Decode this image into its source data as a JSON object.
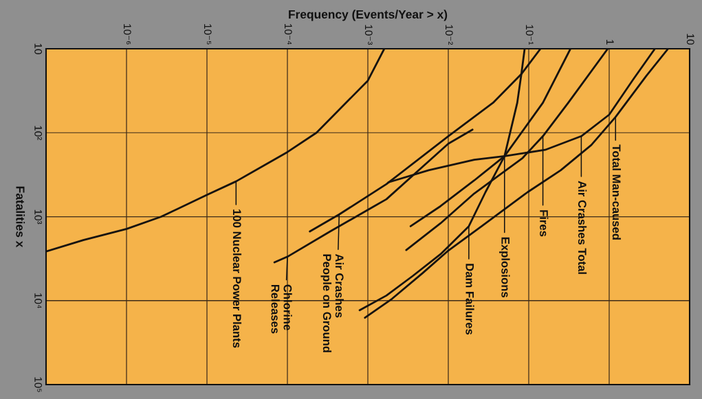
{
  "chart_data": {
    "type": "line",
    "xlabel": "Frequency (Events/Year > x)",
    "ylabel": "Fatalities x",
    "log": "xy",
    "xlim": [
      1e-07,
      10
    ],
    "ylim": [
      100000,
      10
    ],
    "xticks": [
      {
        "value": 1e-06,
        "label": "10⁻⁶"
      },
      {
        "value": 1e-05,
        "label": "10⁻⁵"
      },
      {
        "value": 0.0001,
        "label": "10⁻⁴"
      },
      {
        "value": 0.001,
        "label": "10⁻³"
      },
      {
        "value": 0.01,
        "label": "10⁻²"
      },
      {
        "value": 0.1,
        "label": "10⁻¹"
      },
      1,
      10
    ],
    "yticks": [
      10,
      {
        "value": 100,
        "label": "10²"
      },
      {
        "value": 1000,
        "label": "10³"
      },
      {
        "value": 10000,
        "label": "10⁴"
      },
      {
        "value": 100000,
        "label": "10⁵"
      }
    ],
    "grid": true,
    "line_style": "solid",
    "series": [
      {
        "color": "#161310",
        "x": [
          0.0016,
          0.001,
          0.00023,
          0.0001,
          2.3e-05,
          1e-05,
          2.7e-06,
          1e-06,
          2.9e-07,
          1e-07
        ],
        "values": [
          10,
          24,
          100,
          170,
          380,
          550,
          1000,
          1400,
          1900,
          2600
        ]
      },
      {
        "color": "#161310",
        "x": [
          0.02,
          0.01,
          0.0017,
          0.0012,
          0.00034,
          0.0001,
          6.9e-05
        ],
        "values": [
          92,
          135,
          620,
          750,
          1500,
          3000,
          3500
        ]
      },
      {
        "color": "#161310",
        "x": [
          0.14,
          0.081,
          0.036,
          0.01,
          0.0017,
          0.00044,
          0.00019
        ],
        "values": [
          10,
          20,
          44,
          110,
          410,
          940,
          1500
        ]
      },
      {
        "color": "#161310",
        "x": [
          3.7,
          2.0,
          1.0,
          0.45,
          0.16,
          0.05,
          0.021,
          0.0057,
          0.0018
        ],
        "values": [
          10,
          23,
          61,
          110,
          160,
          190,
          210,
          280,
          390
        ]
      },
      {
        "color": "#161310",
        "x": [
          0.089,
          0.081,
          0.072,
          0.05,
          0.029,
          0.018,
          0.008,
          0.0036,
          0.0017,
          0.00079
        ],
        "values": [
          10,
          20,
          44,
          190,
          510,
          1300,
          2800,
          5100,
          8700,
          13000
        ]
      },
      {
        "color": "#161310",
        "x": [
          0.33,
          0.15,
          0.05,
          0.021,
          0.008,
          0.0034
        ],
        "values": [
          10,
          44,
          190,
          370,
          750,
          1300
        ]
      },
      {
        "color": "#161310",
        "x": [
          0.96,
          0.31,
          0.15,
          0.084,
          0.021,
          0.008,
          0.003
        ],
        "values": [
          10,
          44,
          110,
          200,
          530,
          1200,
          2500
        ]
      },
      {
        "color": "#161310",
        "x": [
          5.4,
          2.9,
          1.2,
          0.6,
          0.25,
          0.097,
          0.026,
          0.0097,
          0.0048,
          0.002,
          0.00092
        ],
        "values": [
          10,
          21,
          65,
          140,
          280,
          510,
          1300,
          2600,
          4700,
          9500,
          16000
        ]
      }
    ],
    "annotations": [
      {
        "text": "100 Nuclear Power Plants",
        "x": 2.3e-05,
        "y": 380
      },
      {
        "text": "Chlorine\nReleases",
        "x": 0.0001,
        "y": 3000
      },
      {
        "text": "Air Crashes\nPeople on Ground",
        "x": 0.00044,
        "y": 940
      },
      {
        "text": "Dam Failures",
        "x": 0.018,
        "y": 1300
      },
      {
        "text": "Explosions",
        "x": 0.05,
        "y": 190
      },
      {
        "text": "Fires",
        "x": 0.15,
        "y": 110
      },
      {
        "text": "Air Crashes Total",
        "x": 0.45,
        "y": 110
      },
      {
        "text": "Total Man-caused",
        "x": 1.2,
        "y": 65
      }
    ]
  }
}
